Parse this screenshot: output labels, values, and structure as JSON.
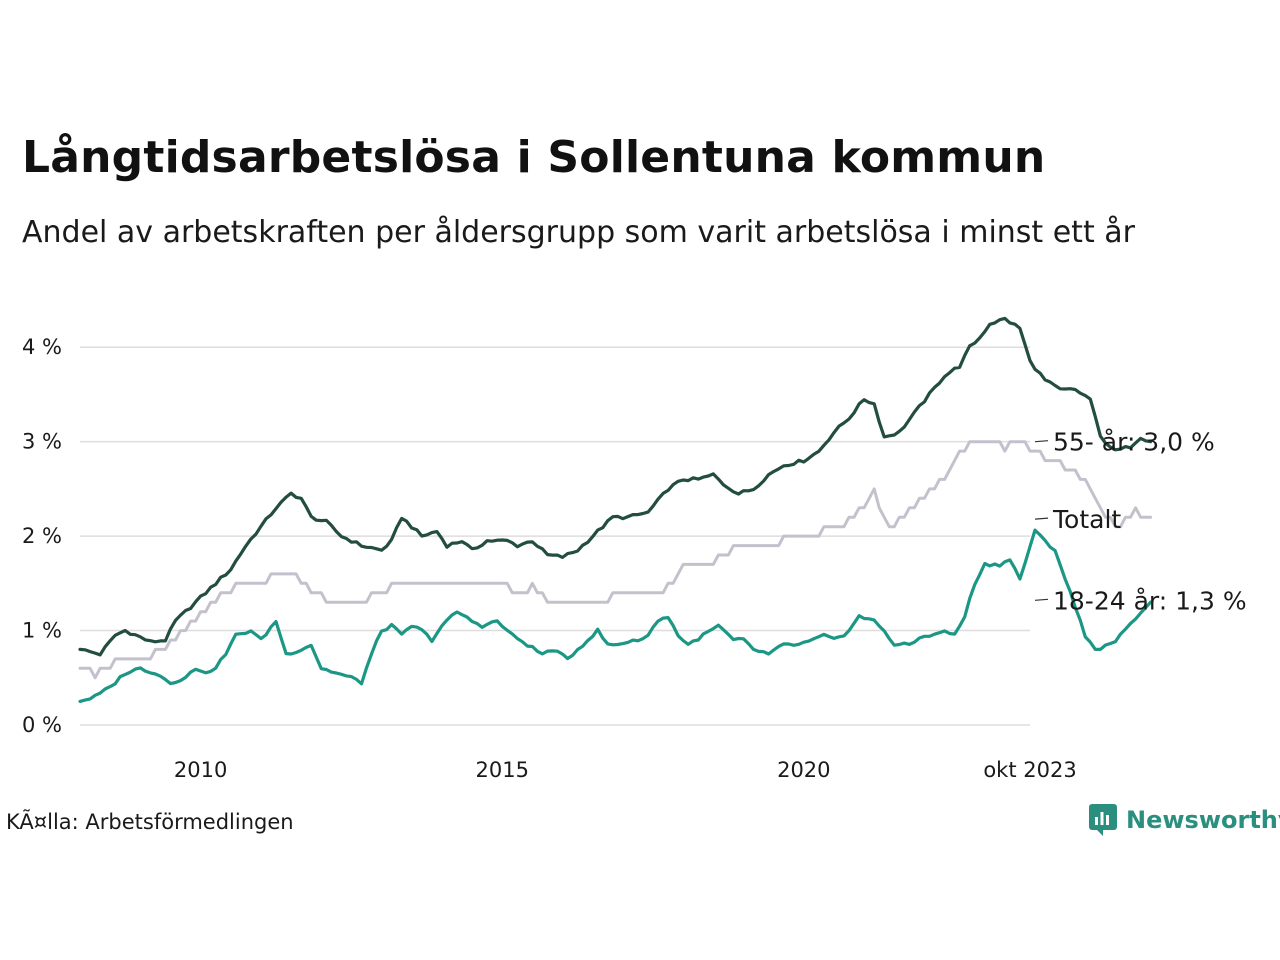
{
  "title": "Långtidsarbetslösa i Sollentuna kommun",
  "subtitle": "Andel av arbetskraften per åldersgrupp som varit arbetslösa i minst ett år",
  "source": "KÃ¤lla: Arbetsförmedlingen",
  "brand": "Newsworthy",
  "colors": {
    "s55": "#234d40",
    "total": "#c4c1cd",
    "s1824": "#1c9785",
    "grid": "#dddddd",
    "brand": "#2a8f7e"
  },
  "chart_data": {
    "type": "line",
    "x_start": 2008.0,
    "x_step_months": 1,
    "xlim": [
      2008.0,
      2023.75
    ],
    "ylim": [
      0,
      4.5
    ],
    "y_ticks": [
      0,
      1,
      2,
      3,
      4
    ],
    "y_tick_labels": [
      "0 %",
      "1 %",
      "2 %",
      "3 %",
      "4 %"
    ],
    "x_ticks": [
      2010,
      2015,
      2020,
      2023.75
    ],
    "x_tick_labels": [
      "2010",
      "2015",
      "2020",
      "okt 2023"
    ],
    "series": [
      {
        "name": "55- år",
        "label": "55- år: 3,0 %",
        "color": "#234d40",
        "anchors": [
          [
            0,
            0.8
          ],
          [
            4,
            0.75
          ],
          [
            7,
            0.95
          ],
          [
            9,
            1.0
          ],
          [
            12,
            0.93
          ],
          [
            14,
            0.88
          ],
          [
            17,
            0.9
          ],
          [
            19,
            1.1
          ],
          [
            23,
            1.3
          ],
          [
            27,
            1.5
          ],
          [
            30,
            1.65
          ],
          [
            33,
            1.9
          ],
          [
            36,
            2.1
          ],
          [
            39,
            2.3
          ],
          [
            42,
            2.45
          ],
          [
            44,
            2.4
          ],
          [
            46,
            2.2
          ],
          [
            49,
            2.15
          ],
          [
            52,
            2.0
          ],
          [
            56,
            1.9
          ],
          [
            60,
            1.85
          ],
          [
            62,
            1.95
          ],
          [
            64,
            2.2
          ],
          [
            66,
            2.1
          ],
          [
            68,
            2.0
          ],
          [
            71,
            2.05
          ],
          [
            73,
            1.9
          ],
          [
            76,
            1.95
          ],
          [
            78,
            1.85
          ],
          [
            81,
            1.95
          ],
          [
            85,
            1.95
          ],
          [
            87,
            1.9
          ],
          [
            90,
            1.95
          ],
          [
            93,
            1.8
          ],
          [
            96,
            1.78
          ],
          [
            99,
            1.85
          ],
          [
            103,
            2.05
          ],
          [
            106,
            2.2
          ],
          [
            109,
            2.2
          ],
          [
            113,
            2.25
          ],
          [
            117,
            2.5
          ],
          [
            120,
            2.6
          ],
          [
            123,
            2.6
          ],
          [
            126,
            2.65
          ],
          [
            128,
            2.55
          ],
          [
            131,
            2.45
          ],
          [
            134,
            2.5
          ],
          [
            137,
            2.65
          ],
          [
            140,
            2.75
          ],
          [
            144,
            2.8
          ],
          [
            147,
            2.9
          ],
          [
            150,
            3.1
          ],
          [
            153,
            3.25
          ],
          [
            156,
            3.45
          ],
          [
            158,
            3.4
          ],
          [
            160,
            3.05
          ],
          [
            163,
            3.1
          ],
          [
            166,
            3.3
          ],
          [
            169,
            3.5
          ],
          [
            172,
            3.7
          ],
          [
            175,
            3.8
          ],
          [
            177,
            4.0
          ],
          [
            179,
            4.1
          ],
          [
            181,
            4.25
          ],
          [
            184,
            4.3
          ],
          [
            187,
            4.2
          ],
          [
            189,
            3.85
          ],
          [
            192,
            3.65
          ],
          [
            195,
            3.55
          ],
          [
            198,
            3.55
          ],
          [
            201,
            3.45
          ],
          [
            203,
            3.05
          ],
          [
            206,
            2.9
          ],
          [
            209,
            2.95
          ],
          [
            211,
            3.05
          ],
          [
            213,
            3.0
          ]
        ]
      },
      {
        "name": "Totalt",
        "label": "Totalt",
        "color": "#c4c1cd",
        "anchors": [
          [
            0,
            0.6
          ],
          [
            2,
            0.6
          ],
          [
            3,
            0.5
          ],
          [
            5,
            0.6
          ],
          [
            8,
            0.7
          ],
          [
            14,
            0.7
          ],
          [
            16,
            0.8
          ],
          [
            19,
            0.9
          ],
          [
            22,
            1.05
          ],
          [
            25,
            1.2
          ],
          [
            28,
            1.4
          ],
          [
            31,
            1.45
          ],
          [
            34,
            1.5
          ],
          [
            38,
            1.55
          ],
          [
            42,
            1.6
          ],
          [
            45,
            1.45
          ],
          [
            48,
            1.35
          ],
          [
            52,
            1.3
          ],
          [
            58,
            1.35
          ],
          [
            62,
            1.45
          ],
          [
            68,
            1.45
          ],
          [
            72,
            1.5
          ],
          [
            78,
            1.5
          ],
          [
            84,
            1.5
          ],
          [
            86,
            1.4
          ],
          [
            90,
            1.45
          ],
          [
            94,
            1.3
          ],
          [
            102,
            1.3
          ],
          [
            110,
            1.4
          ],
          [
            116,
            1.4
          ],
          [
            120,
            1.7
          ],
          [
            125,
            1.7
          ],
          [
            128,
            1.8
          ],
          [
            131,
            1.9
          ],
          [
            136,
            1.9
          ],
          [
            140,
            1.95
          ],
          [
            144,
            2.0
          ],
          [
            148,
            2.05
          ],
          [
            152,
            2.1
          ],
          [
            156,
            2.3
          ],
          [
            158,
            2.45
          ],
          [
            161,
            2.1
          ],
          [
            164,
            2.2
          ],
          [
            168,
            2.4
          ],
          [
            172,
            2.6
          ],
          [
            175,
            2.9
          ],
          [
            178,
            3.0
          ],
          [
            182,
            3.0
          ],
          [
            184,
            2.9
          ],
          [
            186,
            3.0
          ],
          [
            190,
            2.9
          ],
          [
            193,
            2.8
          ],
          [
            197,
            2.7
          ],
          [
            200,
            2.55
          ],
          [
            204,
            2.2
          ],
          [
            207,
            2.1
          ],
          [
            210,
            2.25
          ],
          [
            213,
            2.2
          ]
        ]
      },
      {
        "name": "18-24 år",
        "label": "18-24 år: 1,3 %",
        "color": "#1c9785",
        "anchors": [
          [
            0,
            0.25
          ],
          [
            3,
            0.3
          ],
          [
            6,
            0.4
          ],
          [
            9,
            0.55
          ],
          [
            12,
            0.6
          ],
          [
            15,
            0.55
          ],
          [
            18,
            0.45
          ],
          [
            21,
            0.5
          ],
          [
            23,
            0.6
          ],
          [
            26,
            0.55
          ],
          [
            29,
            0.75
          ],
          [
            31,
            0.95
          ],
          [
            34,
            1.0
          ],
          [
            36,
            0.9
          ],
          [
            39,
            1.1
          ],
          [
            41,
            0.75
          ],
          [
            44,
            0.8
          ],
          [
            46,
            0.85
          ],
          [
            48,
            0.6
          ],
          [
            51,
            0.55
          ],
          [
            54,
            0.5
          ],
          [
            56,
            0.45
          ],
          [
            58,
            0.75
          ],
          [
            60,
            1.0
          ],
          [
            62,
            1.05
          ],
          [
            64,
            0.95
          ],
          [
            66,
            1.05
          ],
          [
            68,
            1.0
          ],
          [
            70,
            0.9
          ],
          [
            72,
            1.05
          ],
          [
            75,
            1.2
          ],
          [
            78,
            1.1
          ],
          [
            80,
            1.05
          ],
          [
            83,
            1.1
          ],
          [
            86,
            0.95
          ],
          [
            89,
            0.85
          ],
          [
            92,
            0.75
          ],
          [
            94,
            0.8
          ],
          [
            97,
            0.7
          ],
          [
            100,
            0.85
          ],
          [
            103,
            1.0
          ],
          [
            105,
            0.85
          ],
          [
            107,
            0.85
          ],
          [
            110,
            0.9
          ],
          [
            112,
            0.9
          ],
          [
            115,
            1.1
          ],
          [
            117,
            1.15
          ],
          [
            119,
            0.95
          ],
          [
            121,
            0.85
          ],
          [
            124,
            0.95
          ],
          [
            127,
            1.05
          ],
          [
            130,
            0.9
          ],
          [
            132,
            0.9
          ],
          [
            134,
            0.8
          ],
          [
            137,
            0.75
          ],
          [
            140,
            0.85
          ],
          [
            143,
            0.85
          ],
          [
            146,
            0.9
          ],
          [
            148,
            0.95
          ],
          [
            150,
            0.9
          ],
          [
            152,
            0.95
          ],
          [
            155,
            1.15
          ],
          [
            158,
            1.1
          ],
          [
            160,
            1.0
          ],
          [
            162,
            0.85
          ],
          [
            165,
            0.85
          ],
          [
            168,
            0.95
          ],
          [
            170,
            0.95
          ],
          [
            172,
            1.0
          ],
          [
            174,
            0.95
          ],
          [
            176,
            1.15
          ],
          [
            178,
            1.5
          ],
          [
            180,
            1.7
          ],
          [
            183,
            1.7
          ],
          [
            185,
            1.75
          ],
          [
            187,
            1.55
          ],
          [
            190,
            2.05
          ],
          [
            192,
            1.95
          ],
          [
            194,
            1.85
          ],
          [
            196,
            1.55
          ],
          [
            198,
            1.25
          ],
          [
            200,
            0.95
          ],
          [
            202,
            0.8
          ],
          [
            205,
            0.85
          ],
          [
            208,
            1.0
          ],
          [
            211,
            1.2
          ],
          [
            213,
            1.3
          ]
        ]
      }
    ]
  }
}
